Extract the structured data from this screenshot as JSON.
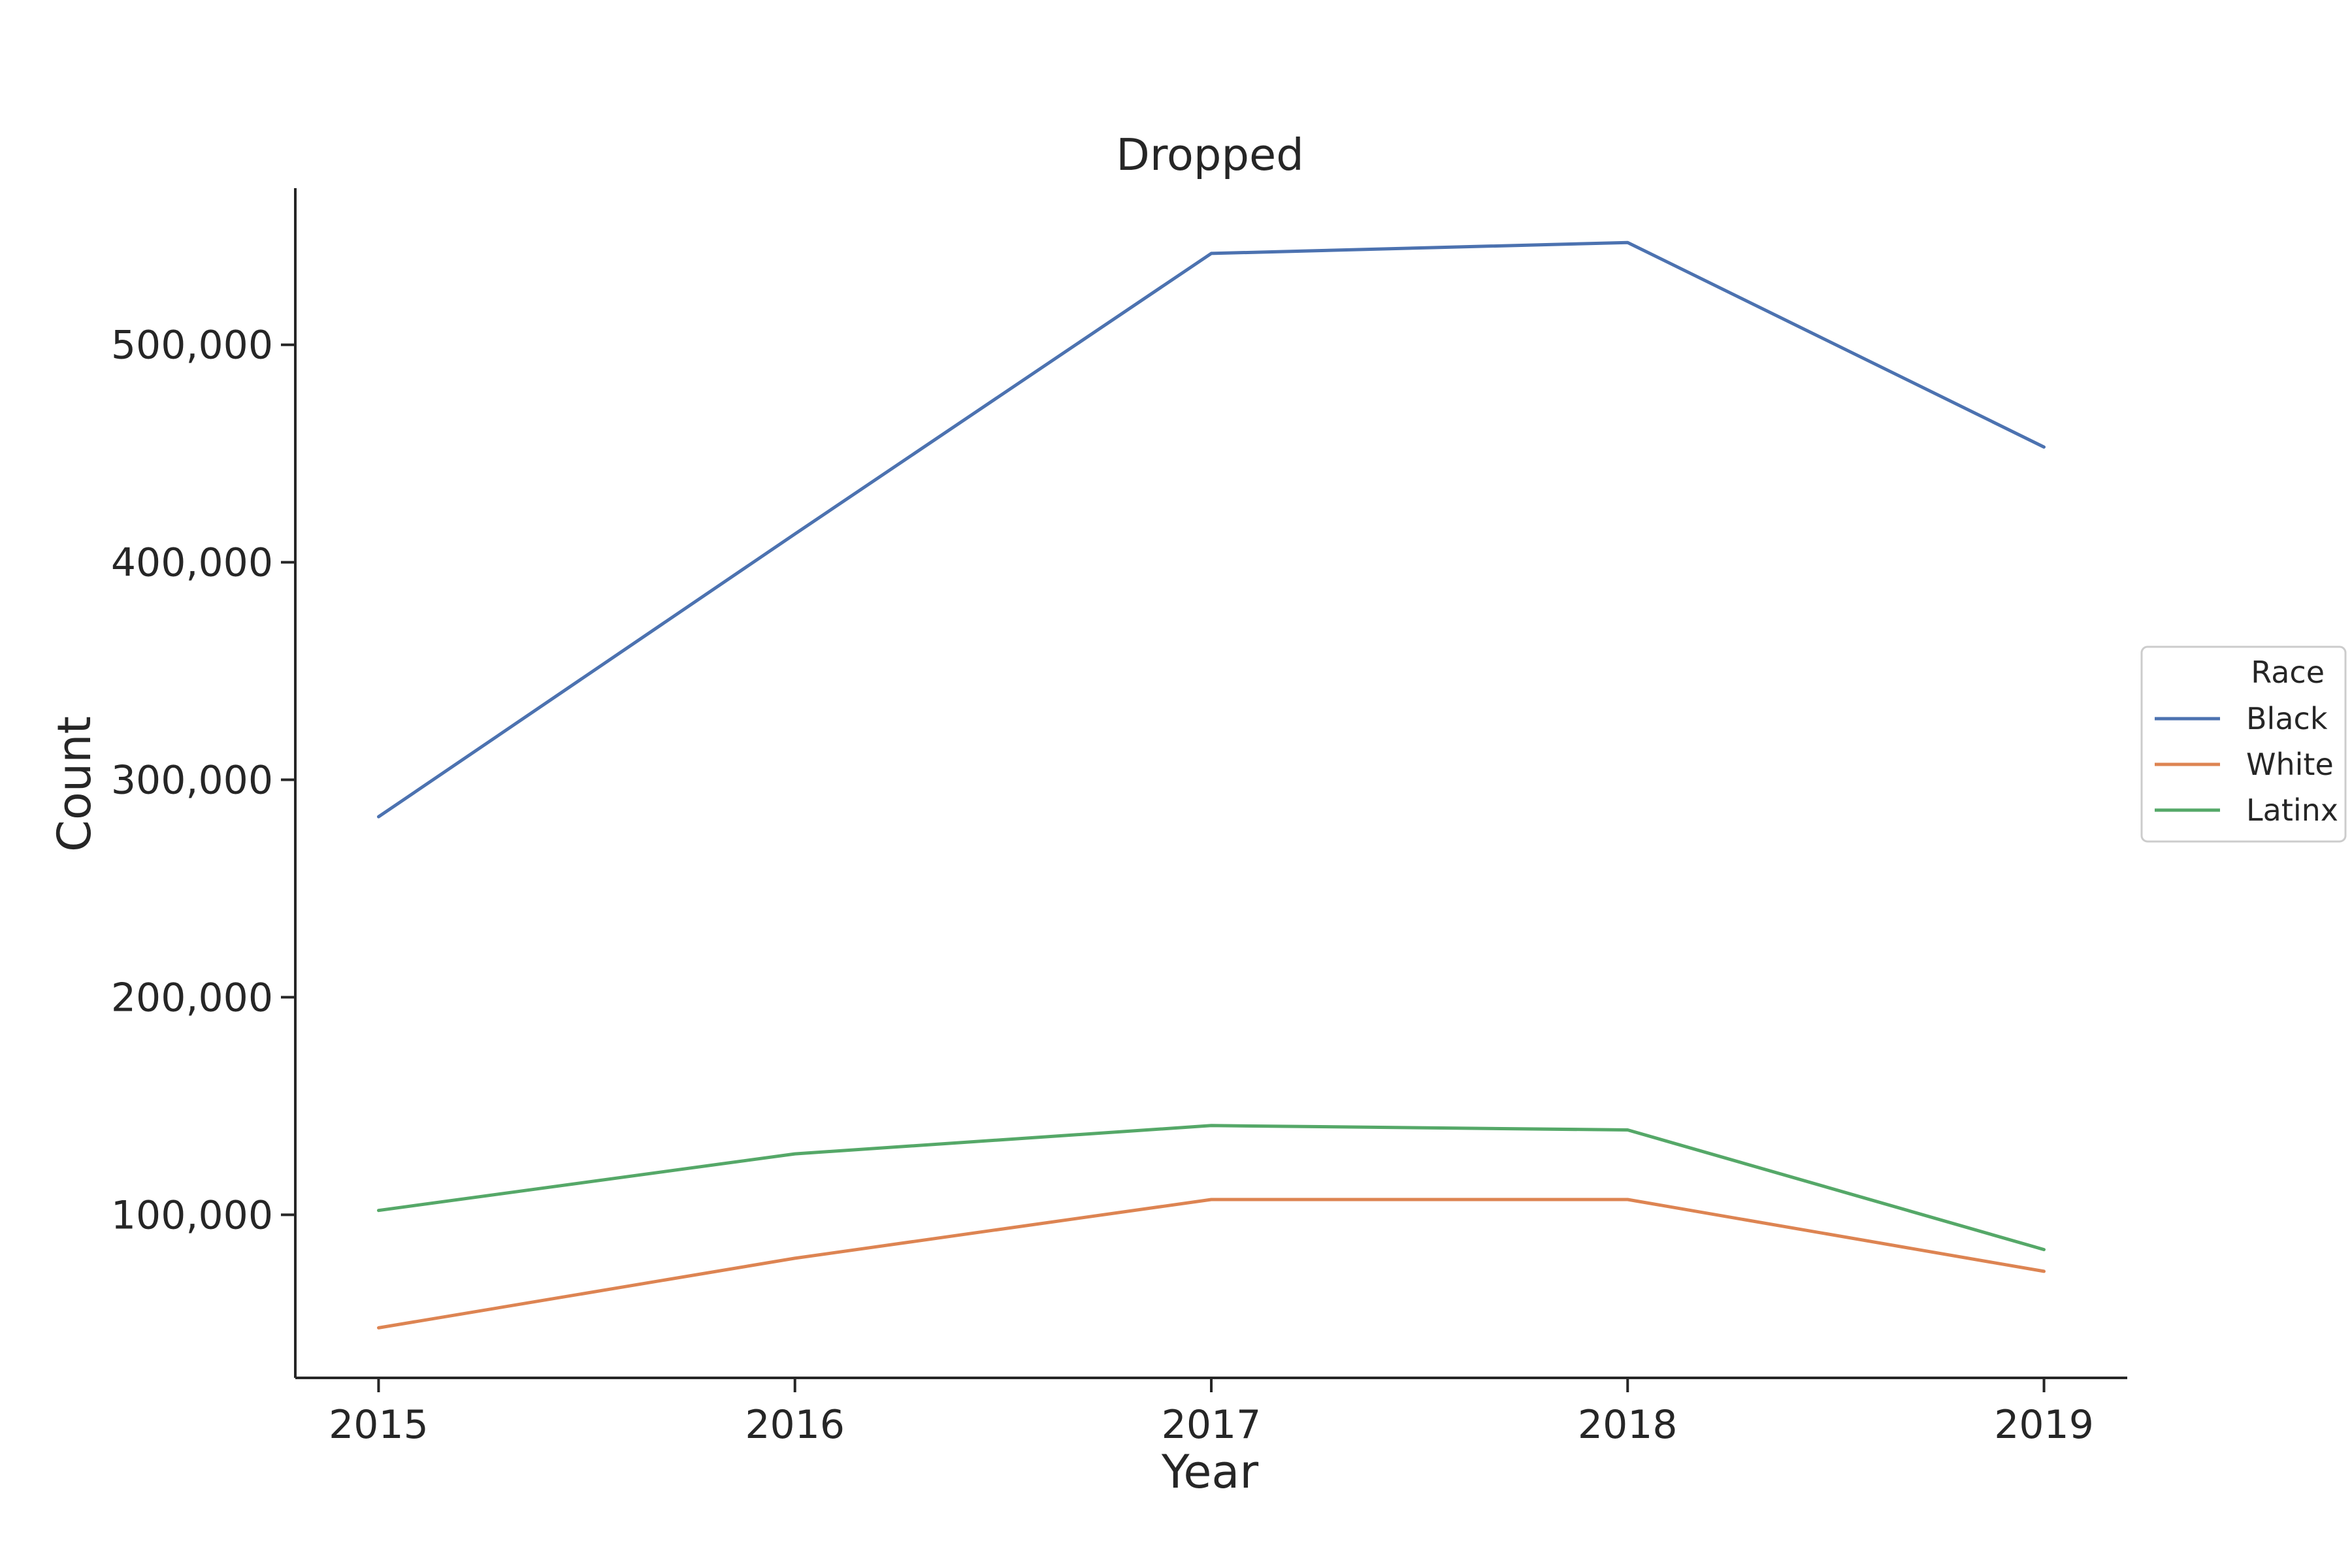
{
  "chart_data": {
    "type": "line",
    "title": "Dropped",
    "xlabel": "Year",
    "ylabel": "Count",
    "x": [
      2015,
      2016,
      2017,
      2018,
      2019
    ],
    "xlim": [
      2014.8,
      2019.2
    ],
    "ylim": [
      25000,
      572000
    ],
    "yticks": [
      100000,
      200000,
      300000,
      400000,
      500000
    ],
    "grid": false,
    "legend": {
      "title": "Race",
      "placement": "right"
    },
    "series": [
      {
        "name": "Black",
        "color": "#4c72b0",
        "values": [
          283000,
          413000,
          542000,
          547000,
          453000
        ]
      },
      {
        "name": "White",
        "color": "#dd8452",
        "values": [
          48000,
          80000,
          107000,
          107000,
          74000
        ]
      },
      {
        "name": "Latinx",
        "color": "#55a868",
        "values": [
          102000,
          128000,
          141000,
          139000,
          84000
        ]
      }
    ]
  }
}
